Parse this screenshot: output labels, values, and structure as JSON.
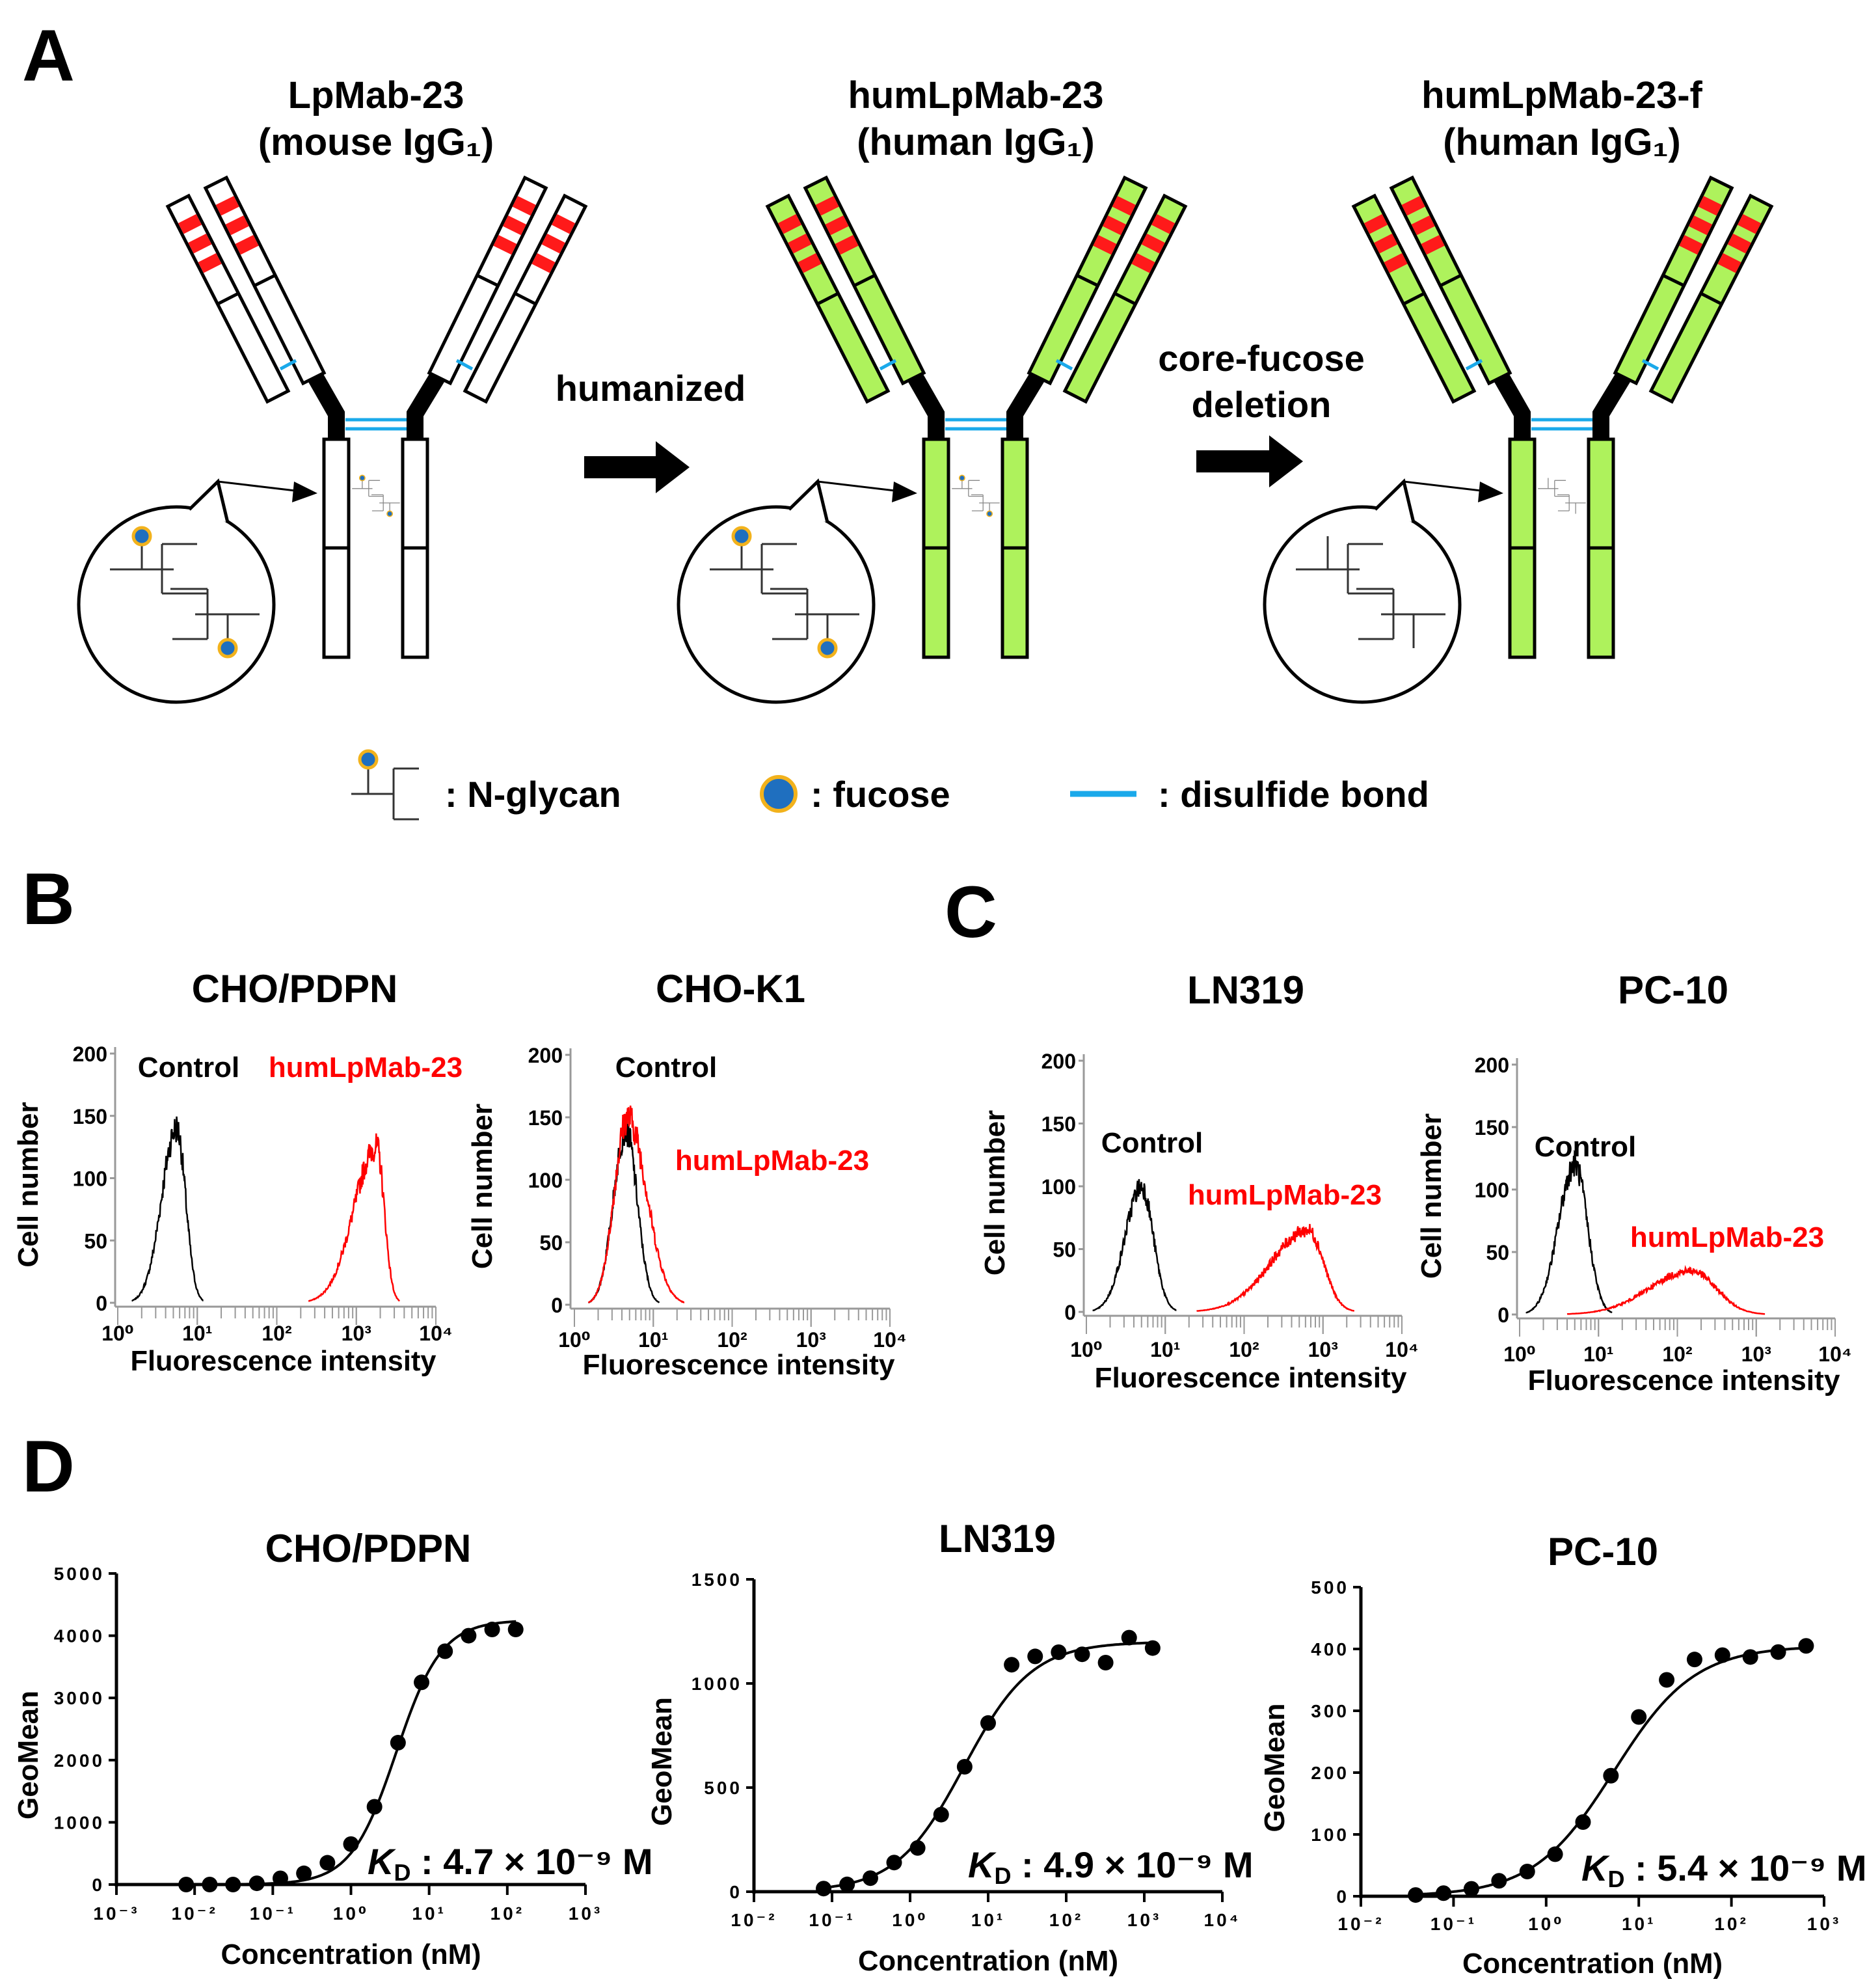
{
  "panel_labels": {
    "a": "A",
    "b": "B",
    "c": "C",
    "d": "D"
  },
  "panel_a": {
    "antibodies": [
      {
        "name": "LpMab-23",
        "subtitle": "(mouse IgG₁)",
        "chain_fill": "#ffffff",
        "fucose": true
      },
      {
        "name": "humLpMab-23",
        "subtitle": "(human IgG₁)",
        "chain_fill": "#aef25c",
        "fucose": true
      },
      {
        "name": "humLpMab-23-f",
        "subtitle": "(human IgG₁)",
        "chain_fill": "#aef25c",
        "fucose": false
      }
    ],
    "arrows": [
      {
        "label_lines": [
          "humanized"
        ]
      },
      {
        "label_lines": [
          "core-fucose",
          "deletion"
        ]
      }
    ],
    "legend": [
      {
        "symbol": "n-glycan",
        "label": ": N-glycan"
      },
      {
        "symbol": "fucose",
        "label": ": fucose"
      },
      {
        "symbol": "disulfide-bond",
        "label": ": disulfide bond"
      }
    ],
    "colors": {
      "cdr": "#ff1a1a",
      "disulfide": "#1aa9ea",
      "fucose_fill": "#1f6fbf",
      "fucose_ring": "#f2b21c",
      "hinge": "#000000"
    }
  },
  "chart_data": [
    {
      "panel": "B",
      "type": "histogram",
      "title": "CHO/PDPN",
      "xlabel": "Fluorescence intensity",
      "ylabel": "Cell number",
      "xscale": "log",
      "xlim": [
        1,
        10000
      ],
      "ylim": [
        0,
        200
      ],
      "xticks": [
        "10⁰",
        "10¹",
        "10²",
        "10³",
        "10⁴"
      ],
      "yticks": [
        0,
        50,
        100,
        150,
        200
      ],
      "series": [
        {
          "name": "Control",
          "color": "#000000",
          "peak_intensity": 5.5,
          "peak_count": 140,
          "range": [
            1.5,
            12
          ]
        },
        {
          "name": "humLpMab-23",
          "color": "#ff0000",
          "peak_intensity": 1800,
          "peak_count": 125,
          "range": [
            250,
            3500
          ]
        }
      ]
    },
    {
      "panel": "B",
      "type": "histogram",
      "title": "CHO-K1",
      "xlabel": "Fluorescence intensity",
      "ylabel": "Cell number",
      "xscale": "log",
      "xlim": [
        1,
        10000
      ],
      "ylim": [
        0,
        200
      ],
      "xticks": [
        "10⁰",
        "10¹",
        "10²",
        "10³",
        "10⁴"
      ],
      "yticks": [
        0,
        50,
        100,
        150,
        200
      ],
      "series": [
        {
          "name": "Control",
          "color": "#000000",
          "peak_intensity": 4.5,
          "peak_count": 140,
          "range": [
            1.5,
            12
          ]
        },
        {
          "name": "humLpMab-23",
          "color": "#ff0000",
          "peak_intensity": 4.7,
          "peak_count": 150,
          "range": [
            1.5,
            25
          ]
        }
      ]
    },
    {
      "panel": "C",
      "type": "histogram",
      "title": "LN319",
      "xlabel": "Fluorescence intensity",
      "ylabel": "Cell number",
      "xscale": "log",
      "xlim": [
        1,
        10000
      ],
      "ylim": [
        0,
        200
      ],
      "xticks": [
        "10⁰",
        "10¹",
        "10²",
        "10³",
        "10⁴"
      ],
      "yticks": [
        0,
        50,
        100,
        150,
        200
      ],
      "series": [
        {
          "name": "Control",
          "color": "#000000",
          "peak_intensity": 5,
          "peak_count": 100,
          "range": [
            1.2,
            14
          ]
        },
        {
          "name": "humLpMab-23",
          "color": "#ff0000",
          "peak_intensity": 650,
          "peak_count": 65,
          "range": [
            25,
            2500
          ]
        }
      ]
    },
    {
      "panel": "C",
      "type": "histogram",
      "title": "PC-10",
      "xlabel": "Fluorescence intensity",
      "ylabel": "Cell number",
      "xscale": "log",
      "xlim": [
        1,
        10000
      ],
      "ylim": [
        0,
        200
      ],
      "xticks": [
        "10⁰",
        "10¹",
        "10²",
        "10³",
        "10⁴"
      ],
      "yticks": [
        0,
        50,
        100,
        150,
        200
      ],
      "series": [
        {
          "name": "Control",
          "color": "#000000",
          "peak_intensity": 5,
          "peak_count": 120,
          "range": [
            1.2,
            15
          ]
        },
        {
          "name": "humLpMab-23",
          "color": "#ff0000",
          "peak_intensity": 150,
          "peak_count": 35,
          "range": [
            4,
            1300
          ]
        }
      ]
    },
    {
      "panel": "D",
      "type": "scatter",
      "title": "CHO/PDPN",
      "xlabel": "Concentration (nM)",
      "ylabel": "GeoMean",
      "xscale": "log",
      "xlim": [
        0.001,
        1000
      ],
      "ylim": [
        0,
        5000
      ],
      "xticks": [
        "10⁻³",
        "10⁻²",
        "10⁻¹",
        "10⁰",
        "10¹",
        "10²",
        "10³"
      ],
      "yticks": [
        0,
        1000,
        2000,
        3000,
        4000,
        5000
      ],
      "kd_label": {
        "k": "K",
        "sub": "D",
        "rest": " : 4.7 × 10⁻⁹ M"
      },
      "kd_nM": 4.7,
      "x": [
        0.0078,
        0.0156,
        0.031,
        0.0625,
        0.125,
        0.25,
        0.5,
        1,
        2,
        4,
        8,
        16,
        32,
        64,
        128
      ],
      "y": [
        0,
        0,
        0,
        20,
        100,
        180,
        350,
        650,
        1250,
        2280,
        3250,
        3750,
        4000,
        4100,
        4100
      ]
    },
    {
      "panel": "D",
      "type": "scatter",
      "title": "LN319",
      "xlabel": "Concentration (nM)",
      "ylabel": "GeoMean",
      "xscale": "log",
      "xlim": [
        0.01,
        10000
      ],
      "ylim": [
        0,
        1500
      ],
      "xticks": [
        "10⁻²",
        "10⁻¹",
        "10⁰",
        "10¹",
        "10²",
        "10³",
        "10⁴"
      ],
      "yticks": [
        0,
        500,
        1000,
        1500
      ],
      "kd_label": {
        "k": "K",
        "sub": "D",
        "rest": " : 4.9 × 10⁻⁹ M"
      },
      "kd_nM": 4.9,
      "x": [
        0.078,
        0.156,
        0.31,
        0.625,
        1.25,
        2.5,
        5,
        10,
        20,
        40,
        80,
        160,
        320,
        640,
        1280
      ],
      "y": [
        15,
        35,
        65,
        140,
        210,
        370,
        600,
        810,
        1090,
        1130,
        1150,
        1140,
        1100,
        1220,
        1170
      ]
    },
    {
      "panel": "D",
      "type": "scatter",
      "title": "PC-10",
      "xlabel": "Concentration (nM)",
      "ylabel": "GeoMean",
      "xscale": "log",
      "xlim": [
        0.01,
        1000
      ],
      "ylim": [
        0,
        500
      ],
      "xticks": [
        "10⁻²",
        "10⁻¹",
        "10⁰",
        "10¹",
        "10²",
        "10³"
      ],
      "yticks": [
        0,
        100,
        200,
        300,
        400,
        500
      ],
      "kd_label": {
        "k": "K",
        "sub": "D",
        "rest": " : 5.4 × 10⁻⁹ M"
      },
      "kd_nM": 5.4,
      "x": [
        0.039,
        0.078,
        0.156,
        0.31,
        0.625,
        1.25,
        2.5,
        5,
        10,
        20,
        40,
        80,
        160,
        320,
        640
      ],
      "y": [
        2,
        5,
        12,
        25,
        40,
        68,
        120,
        195,
        290,
        350,
        383,
        390,
        387,
        395,
        405
      ]
    }
  ]
}
